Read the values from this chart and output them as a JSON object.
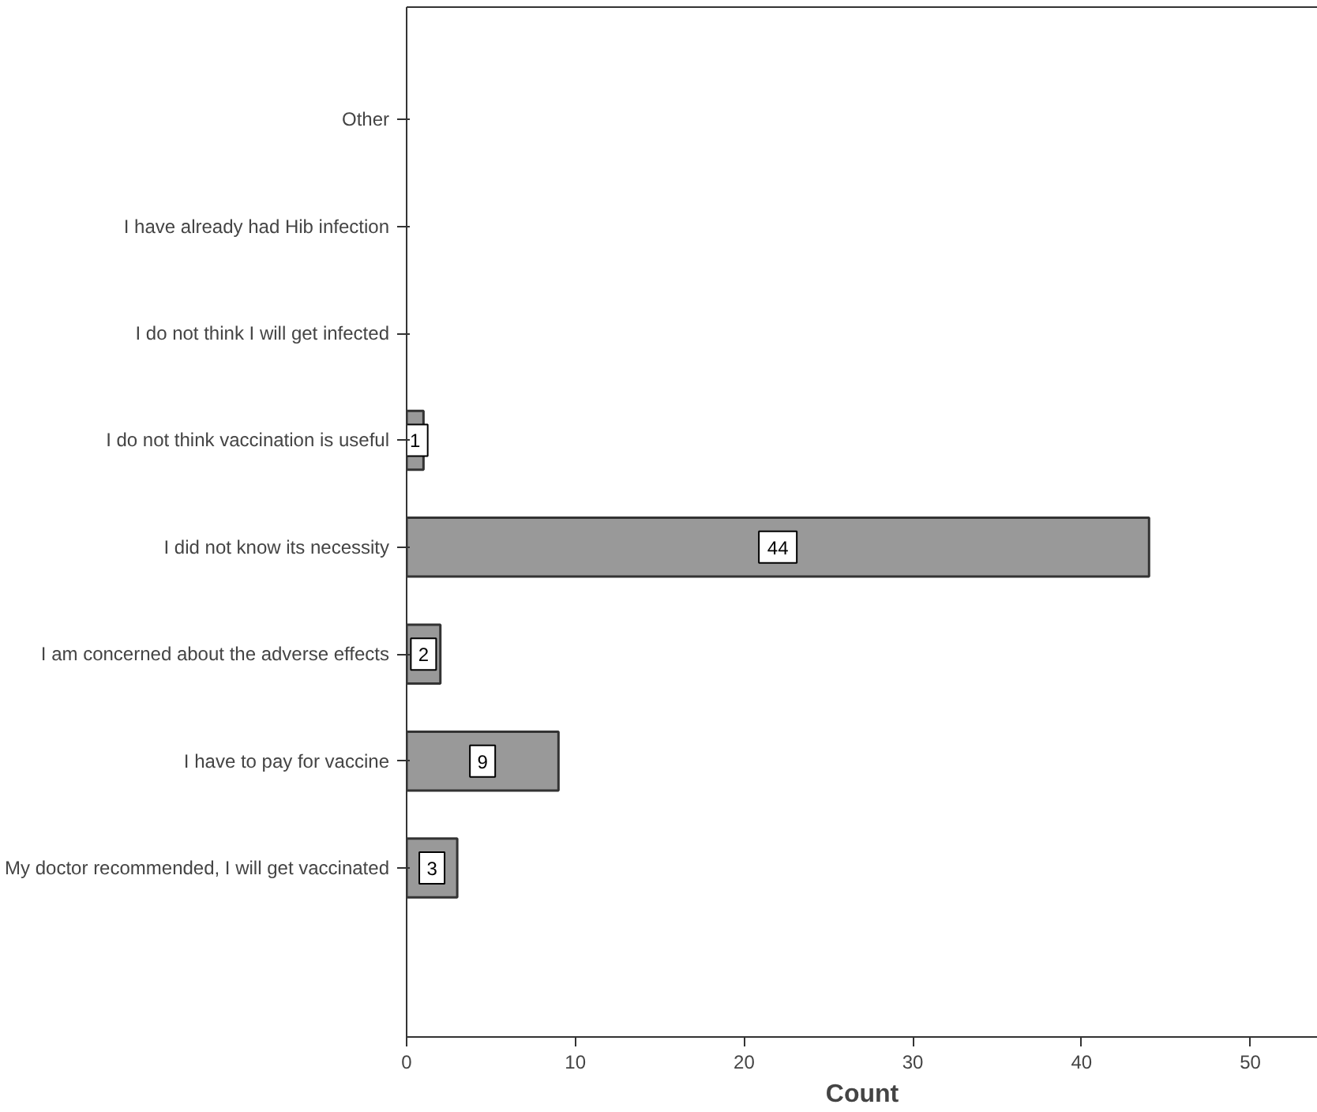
{
  "chart_data": {
    "type": "bar",
    "orientation": "horizontal",
    "xlabel": "Count",
    "categories": [
      "Other",
      "I have already had Hib infection",
      "I do not think I will get infected",
      "I do not think vaccination is useful",
      "I did not know its necessity",
      "I am concerned about the adverse effects",
      "I have to pay for vaccine",
      "My doctor recommended, I will get vaccinated"
    ],
    "values": [
      0,
      0,
      0,
      1,
      44,
      2,
      9,
      3
    ],
    "value_labels": [
      null,
      null,
      null,
      "1",
      "44",
      "2",
      "9",
      "3"
    ],
    "color": "#999999",
    "xlim": [
      0,
      54
    ],
    "xticks": [
      0,
      10,
      20,
      30,
      40,
      50
    ],
    "grid": false
  }
}
